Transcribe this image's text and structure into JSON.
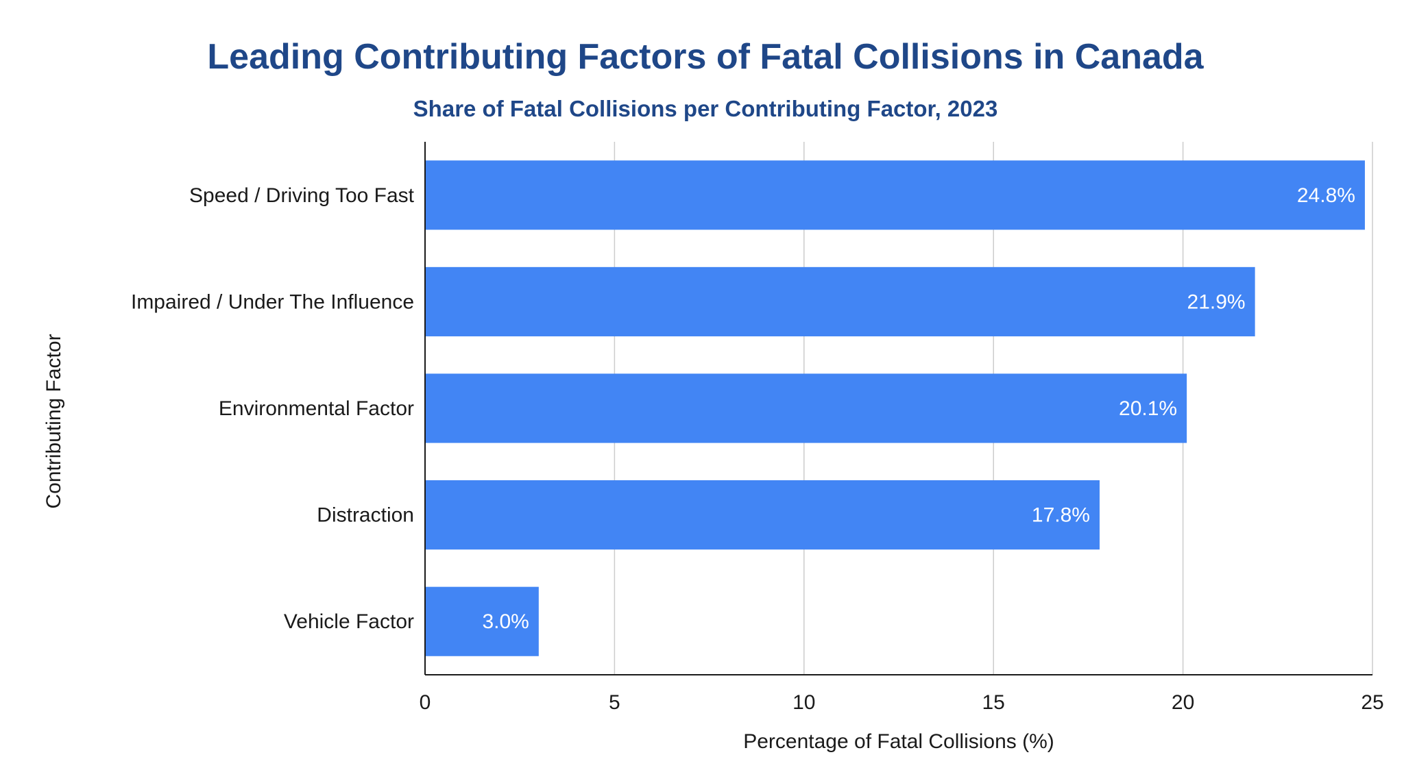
{
  "chart_data": {
    "type": "bar",
    "orientation": "horizontal",
    "title": "Leading Contributing Factors of Fatal Collisions in Canada",
    "subtitle": "Share of Fatal Collisions per Contributing Factor, 2023",
    "xlabel": "Percentage of Fatal Collisions (%)",
    "ylabel": "Contributing Factor",
    "categories": [
      "Speed / Driving Too Fast",
      "Impaired / Under The Influence",
      "Environmental Factor",
      "Distraction",
      "Vehicle Factor"
    ],
    "values": [
      24.8,
      21.9,
      20.1,
      17.8,
      3.0
    ],
    "data_labels": [
      "24.8%",
      "21.9%",
      "20.1%",
      "17.8%",
      "3.0%"
    ],
    "xlim": [
      0,
      25
    ],
    "xticks": [
      0,
      5,
      10,
      15,
      20,
      25
    ],
    "grid": true,
    "legend": "none",
    "bar_color": "#4285f4",
    "title_color": "#1f4788"
  }
}
